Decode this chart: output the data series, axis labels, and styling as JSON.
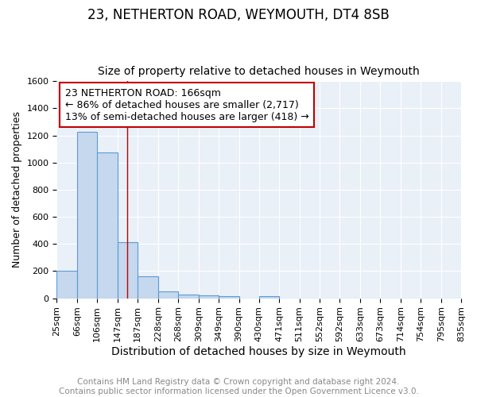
{
  "title": "23, NETHERTON ROAD, WEYMOUTH, DT4 8SB",
  "subtitle": "Size of property relative to detached houses in Weymouth",
  "xlabel": "Distribution of detached houses by size in Weymouth",
  "ylabel": "Number of detached properties",
  "bin_edges": [
    25,
    66,
    106,
    147,
    187,
    228,
    268,
    309,
    349,
    390,
    430,
    471,
    511,
    552,
    592,
    633,
    673,
    714,
    754,
    795,
    835
  ],
  "bin_counts": [
    200,
    1225,
    1075,
    415,
    160,
    52,
    28,
    22,
    15,
    0,
    15,
    0,
    0,
    0,
    0,
    0,
    0,
    0,
    0,
    0
  ],
  "bar_color": "#c5d8ee",
  "bar_edge_color": "#5b9bd5",
  "property_line_x": 166,
  "property_line_color": "#c00000",
  "annotation_line1": "23 NETHERTON ROAD: 166sqm",
  "annotation_line2": "← 86% of detached houses are smaller (2,717)",
  "annotation_line3": "13% of semi-detached houses are larger (418) →",
  "annotation_box_color": "#ffffff",
  "annotation_box_edge_color": "#c00000",
  "ylim": [
    0,
    1600
  ],
  "tick_labels": [
    "25sqm",
    "66sqm",
    "106sqm",
    "147sqm",
    "187sqm",
    "228sqm",
    "268sqm",
    "309sqm",
    "349sqm",
    "390sqm",
    "430sqm",
    "471sqm",
    "511sqm",
    "552sqm",
    "592sqm",
    "633sqm",
    "673sqm",
    "714sqm",
    "754sqm",
    "795sqm",
    "835sqm"
  ],
  "bg_color": "#eaf0f8",
  "grid_color": "#ffffff",
  "footer_text": "Contains HM Land Registry data © Crown copyright and database right 2024.\nContains public sector information licensed under the Open Government Licence v3.0.",
  "title_fontsize": 12,
  "subtitle_fontsize": 10,
  "ylabel_fontsize": 9,
  "xlabel_fontsize": 10,
  "tick_fontsize": 8,
  "annotation_fontsize": 9,
  "footer_fontsize": 7.5
}
